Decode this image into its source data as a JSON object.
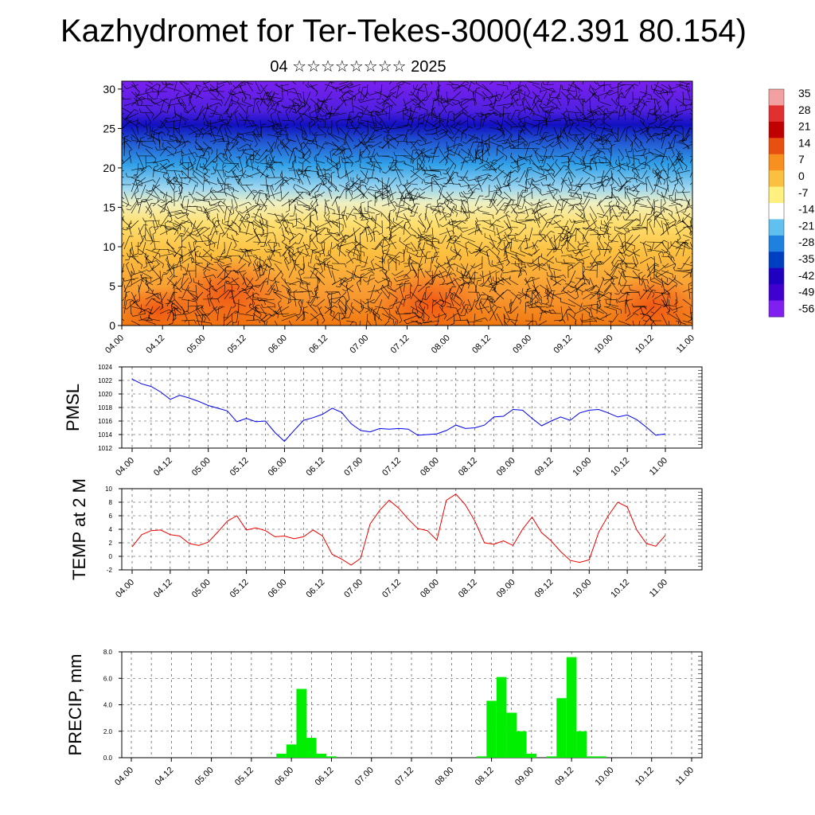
{
  "title": "Kazhydromet for Ter-Tekes-3000(42.391 80.154)",
  "subtitle": "04 ☆☆☆☆☆☆☆☆ 2025",
  "time_ticks": [
    "04.00",
    "04.12",
    "05.00",
    "05.12",
    "06.00",
    "06.12",
    "07.00",
    "07.12",
    "08.00",
    "08.12",
    "09.00",
    "09.12",
    "10.00",
    "10.12",
    "11.00"
  ],
  "colorbar": {
    "labels": [
      "35",
      "28",
      "21",
      "14",
      "7",
      "0",
      "-7",
      "-14",
      "-21",
      "-28",
      "-35",
      "-42",
      "-49",
      "-56"
    ],
    "colors": [
      "#f2a0a0",
      "#e03030",
      "#c00000",
      "#e85010",
      "#f89020",
      "#fcc040",
      "#fff080",
      "#ffffff",
      "#60c0f0",
      "#2080e0",
      "#0040c0",
      "#2000c0",
      "#4000d0",
      "#8020f0"
    ]
  },
  "chart_data": [
    {
      "type": "heatmap",
      "title": "",
      "description": "temperature cross-section with wind barbs",
      "y_ticks": [
        0,
        5,
        10,
        15,
        20,
        25,
        30
      ],
      "ylim": [
        0,
        31
      ],
      "x_ticks": [
        "04.00",
        "04.12",
        "05.00",
        "05.12",
        "06.00",
        "06.12",
        "07.00",
        "07.12",
        "08.00",
        "08.12",
        "09.00",
        "09.12",
        "10.00",
        "10.12",
        "11.00"
      ]
    },
    {
      "type": "line",
      "ylabel": "PMSL",
      "ylim": [
        1012,
        1024
      ],
      "y_ticks": [
        1012,
        1014,
        1016,
        1018,
        1020,
        1022,
        1024
      ],
      "line_color": "#0000ee",
      "x_hours": [
        0,
        3,
        6,
        9,
        12,
        15,
        18,
        21,
        24,
        27,
        30,
        33,
        36,
        39,
        42,
        45,
        48,
        51,
        54,
        57,
        60,
        63,
        66,
        69,
        72,
        75,
        78,
        81,
        84,
        87,
        90,
        93,
        96,
        99,
        102,
        105,
        108,
        111,
        114,
        117,
        120,
        123,
        126,
        129,
        132,
        135,
        138,
        141,
        144,
        147,
        150,
        153,
        156,
        159,
        162,
        165,
        168
      ],
      "values": [
        1022.2,
        1021.5,
        1021.1,
        1020.3,
        1019.2,
        1019.8,
        1019.4,
        1018.9,
        1018.3,
        1017.9,
        1017.5,
        1015.9,
        1016.4,
        1015.9,
        1016.0,
        1014.3,
        1013.0,
        1014.6,
        1016.1,
        1016.5,
        1017.0,
        1017.9,
        1017.3,
        1015.6,
        1014.6,
        1014.4,
        1014.9,
        1014.8,
        1014.9,
        1014.8,
        1013.9,
        1014.0,
        1014.1,
        1014.6,
        1015.4,
        1014.9,
        1015.0,
        1015.4,
        1016.6,
        1016.7,
        1017.7,
        1017.6,
        1016.4,
        1015.3,
        1016.0,
        1016.6,
        1016.1,
        1017.2,
        1017.6,
        1017.7,
        1017.2,
        1016.6,
        1016.9,
        1016.2,
        1015.1,
        1013.9,
        1014.1
      ]
    },
    {
      "type": "line",
      "ylabel": "TEMP at 2 M",
      "ylim": [
        -2,
        10
      ],
      "y_ticks": [
        -2,
        0,
        2,
        4,
        6,
        8,
        10
      ],
      "line_color": "#ee0000",
      "x_hours": [
        0,
        3,
        6,
        9,
        12,
        15,
        18,
        21,
        24,
        27,
        30,
        33,
        36,
        39,
        42,
        45,
        48,
        51,
        54,
        57,
        60,
        63,
        66,
        69,
        72,
        75,
        78,
        81,
        84,
        87,
        90,
        93,
        96,
        99,
        102,
        105,
        108,
        111,
        114,
        117,
        120,
        123,
        126,
        129,
        132,
        135,
        138,
        141,
        144,
        147,
        150,
        153,
        156,
        159,
        162,
        165,
        168
      ],
      "values": [
        1.4,
        3.2,
        3.8,
        3.9,
        3.2,
        3.0,
        1.9,
        1.6,
        2.1,
        3.6,
        5.2,
        6.0,
        3.9,
        4.2,
        3.8,
        2.9,
        3.0,
        2.6,
        2.9,
        3.9,
        3.0,
        0.3,
        -0.4,
        -1.3,
        -0.3,
        4.8,
        6.8,
        8.3,
        7.1,
        5.5,
        4.1,
        3.8,
        2.4,
        8.3,
        9.2,
        7.6,
        5.2,
        2.0,
        1.8,
        2.3,
        1.6,
        4.0,
        5.8,
        3.5,
        2.3,
        0.7,
        -0.6,
        -0.9,
        -0.5,
        3.6,
        6.0,
        8.0,
        7.3,
        3.9,
        1.9,
        1.5,
        3.1
      ]
    },
    {
      "type": "bar",
      "ylabel": "PRECIP, mm",
      "ylim": [
        0,
        8
      ],
      "y_ticks": [
        "0.0",
        "2.0",
        "4.0",
        "6.0",
        "8.0"
      ],
      "bar_color": "#00ee00",
      "x_hours": [
        45,
        48,
        51,
        54,
        57,
        60,
        105,
        108,
        111,
        114,
        117,
        120,
        126,
        129,
        132,
        135,
        138,
        141,
        144
      ],
      "values": [
        0.3,
        1.0,
        5.2,
        1.5,
        0.3,
        0.1,
        0.1,
        4.3,
        6.1,
        3.4,
        2.0,
        0.3,
        0.1,
        4.5,
        7.6,
        2.0,
        0.1,
        0.1,
        0.0
      ]
    }
  ]
}
